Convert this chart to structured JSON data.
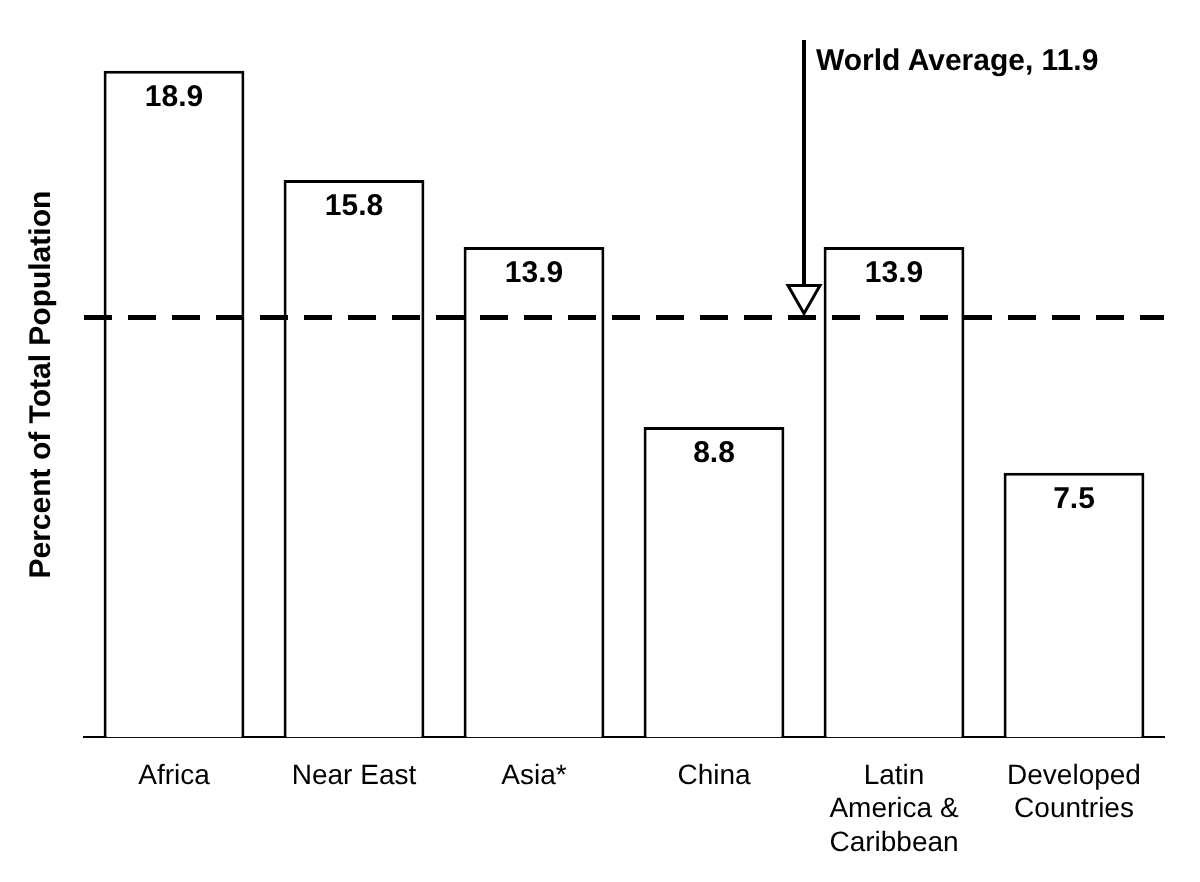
{
  "chart_data": {
    "type": "bar",
    "ylabel": "Percent of Total Population",
    "categories": [
      "Africa",
      "Near East",
      "Asia*",
      "China",
      "Latin America & Caribbean",
      "Developed Countries"
    ],
    "values": [
      18.9,
      15.8,
      13.9,
      8.8,
      13.9,
      7.5
    ],
    "color": "#ffffff",
    "data_labels": true,
    "grid": false,
    "legend": false,
    "ref_lines": [
      {
        "axis": "y",
        "value": 11.9,
        "label": "World Average, 11.9",
        "line_style": "dashed",
        "color": "#000000"
      }
    ]
  }
}
